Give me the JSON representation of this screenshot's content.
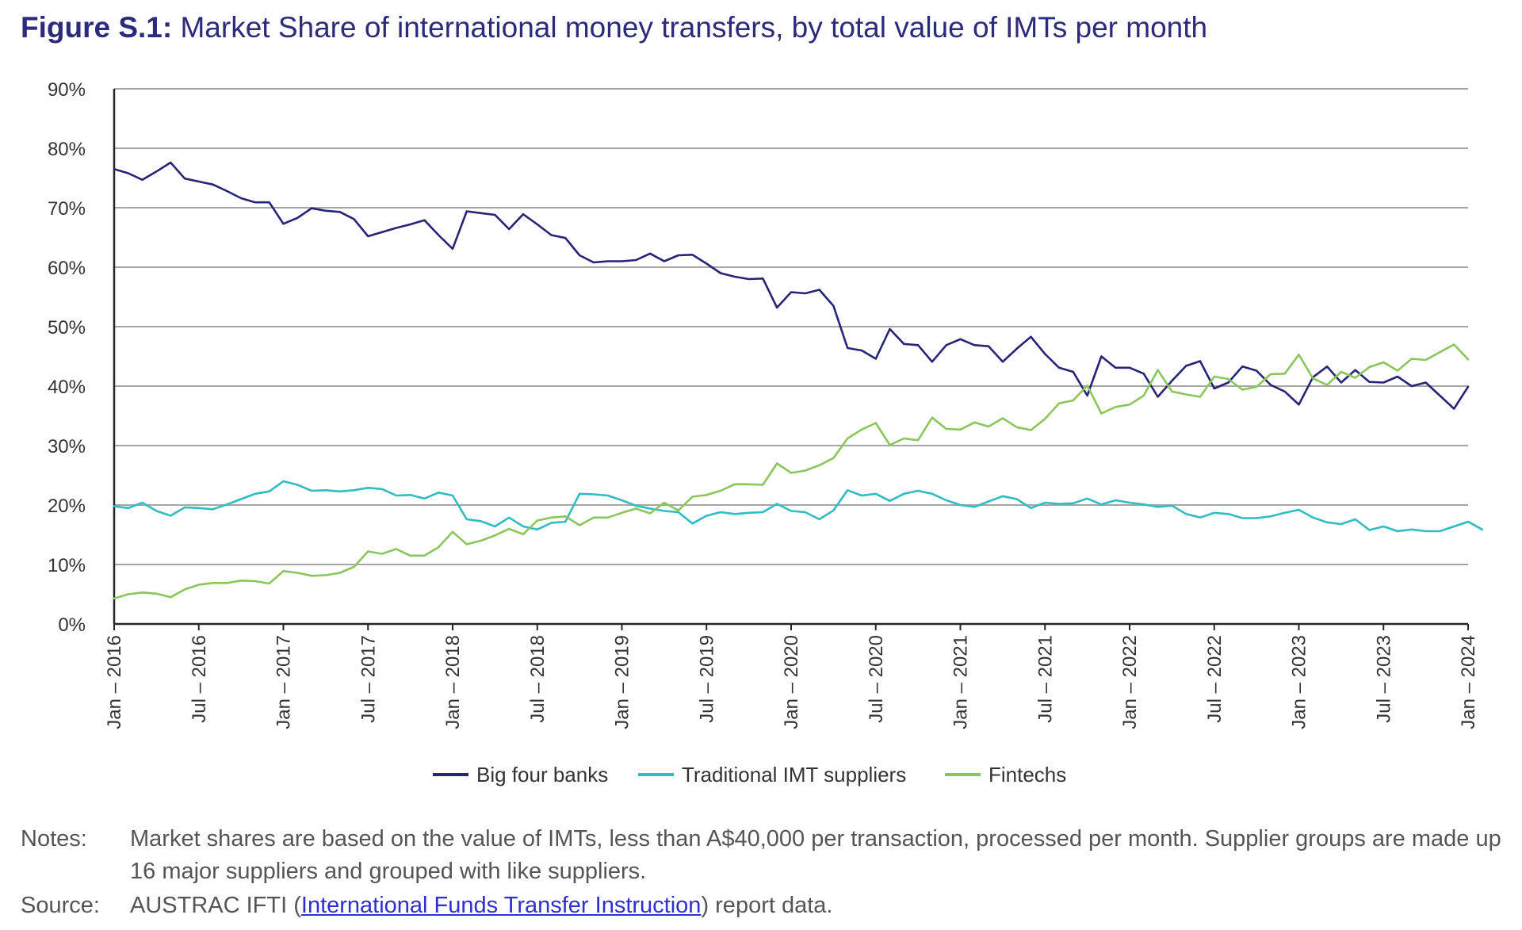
{
  "figure": {
    "label": "Figure S.1:",
    "title": "Market Share of international money transfers, by total value of IMTs per month"
  },
  "chart_data": {
    "type": "line",
    "title": "Market Share of international money transfers, by total value of IMTs per month",
    "xlabel": "",
    "ylabel": "",
    "ylim": [
      0,
      90
    ],
    "yticks": [
      "0%",
      "10%",
      "20%",
      "30%",
      "40%",
      "50%",
      "60%",
      "70%",
      "80%",
      "90%"
    ],
    "xticks": [
      "Jan – 2016",
      "Jul – 2016",
      "Jan – 2017",
      "Jul – 2017",
      "Jan – 2018",
      "Jul – 2018",
      "Jan – 2019",
      "Jul – 2019",
      "Jan – 2020",
      "Jul – 2020",
      "Jan – 2021",
      "Jul – 2021",
      "Jan – 2022",
      "Jul – 2022",
      "Jan – 2023",
      "Jul – 2023",
      "Jan – 2024"
    ],
    "x_start": "Jan 2016",
    "x_end": "Jan 2024",
    "n_months": 97,
    "legend_position": "bottom-center",
    "series": [
      {
        "name": "Big four banks",
        "color": "#272478",
        "values": [
          76.5,
          75.8,
          74.7,
          76.1,
          77.6,
          74.9,
          74.4,
          73.9,
          72.8,
          71.6,
          70.9,
          70.9,
          67.3,
          68.3,
          69.9,
          69.5,
          69.3,
          68.1,
          65.2,
          65.9,
          66.6,
          67.2,
          67.9,
          65.4,
          63.1,
          69.4,
          69.1,
          68.8,
          66.4,
          68.9,
          67.2,
          65.4,
          64.9,
          62.0,
          60.8,
          61.0,
          61.0,
          61.2,
          62.3,
          61.0,
          62.0,
          62.1,
          60.6,
          59.0,
          58.4,
          58.0,
          58.1,
          53.2,
          55.8,
          55.6,
          56.2,
          53.5,
          46.4,
          46.0,
          44.6,
          49.6,
          47.1,
          46.9,
          44.1,
          46.9,
          47.9,
          46.9,
          46.7,
          44.1,
          46.3,
          48.3,
          45.4,
          43.1,
          42.4,
          38.4,
          45.0,
          43.1,
          43.1,
          42.1,
          38.2,
          40.9,
          43.4,
          44.2,
          39.6,
          40.6,
          43.3,
          42.6,
          40.2,
          39.1,
          36.9,
          41.5,
          43.3,
          40.6,
          42.7,
          40.7,
          40.6,
          41.6,
          40.0,
          40.6,
          38.4,
          36.2,
          39.9
        ]
      },
      {
        "name": "Traditional IMT suppliers",
        "color": "#2fbcc4",
        "values": [
          19.8,
          19.5,
          20.4,
          19.0,
          18.2,
          19.6,
          19.5,
          19.3,
          20.1,
          21.0,
          21.9,
          22.3,
          24.0,
          23.4,
          22.4,
          22.5,
          22.3,
          22.5,
          22.9,
          22.7,
          21.6,
          21.7,
          21.1,
          22.1,
          21.6,
          17.6,
          17.3,
          16.4,
          17.9,
          16.4,
          15.9,
          17.0,
          17.2,
          21.9,
          21.8,
          21.6,
          20.8,
          19.9,
          19.4,
          19.0,
          18.8,
          16.9,
          18.2,
          18.8,
          18.5,
          18.7,
          18.8,
          20.2,
          19.0,
          18.8,
          17.6,
          19.1,
          22.5,
          21.6,
          21.9,
          20.7,
          21.9,
          22.4,
          21.9,
          20.8,
          20.0,
          19.7,
          20.6,
          21.5,
          21.0,
          19.5,
          20.4,
          20.2,
          20.3,
          21.1,
          20.1,
          20.8,
          20.4,
          20.1,
          19.7,
          19.9,
          18.5,
          17.9,
          18.7,
          18.5,
          17.8,
          17.8,
          18.1,
          18.7,
          19.2,
          17.9,
          17.1,
          16.8,
          17.6,
          15.8,
          16.4,
          15.6,
          15.9,
          15.6,
          15.6,
          16.4,
          17.2,
          15.9
        ]
      },
      {
        "name": "Fintechs",
        "color": "#8ac75a",
        "values": [
          4.3,
          5.0,
          5.3,
          5.1,
          4.5,
          5.8,
          6.6,
          6.9,
          6.9,
          7.3,
          7.2,
          6.8,
          8.9,
          8.6,
          8.1,
          8.2,
          8.6,
          9.6,
          12.2,
          11.8,
          12.6,
          11.5,
          11.5,
          12.9,
          15.5,
          13.4,
          14.0,
          14.9,
          16.0,
          15.1,
          17.4,
          17.9,
          18.1,
          16.6,
          17.9,
          17.9,
          18.7,
          19.4,
          18.6,
          20.4,
          19.1,
          21.4,
          21.7,
          22.4,
          23.5,
          23.5,
          23.4,
          27.0,
          25.4,
          25.8,
          26.7,
          27.9,
          31.2,
          32.7,
          33.8,
          30.1,
          31.2,
          30.9,
          34.7,
          32.8,
          32.7,
          33.9,
          33.2,
          34.6,
          33.1,
          32.6,
          34.5,
          37.1,
          37.6,
          40.1,
          35.4,
          36.5,
          36.9,
          38.4,
          42.7,
          39.1,
          38.6,
          38.2,
          41.6,
          41.2,
          39.4,
          39.9,
          42.0,
          42.1,
          45.3,
          41.3,
          40.2,
          42.4,
          41.4,
          43.2,
          44.0,
          42.6,
          44.6,
          44.4,
          45.7,
          47.0,
          44.5
        ]
      }
    ]
  },
  "notes": {
    "label": "Notes:",
    "text": "Market shares are based on the value of IMTs, less than A$40,000 per transaction, processed per month. Supplier groups are made up 16 major suppliers and grouped with like suppliers."
  },
  "source": {
    "label": "Source:",
    "prefix": "AUSTRAC IFTI (",
    "link_text": "International Funds Transfer Instruction",
    "suffix": ") report data."
  }
}
